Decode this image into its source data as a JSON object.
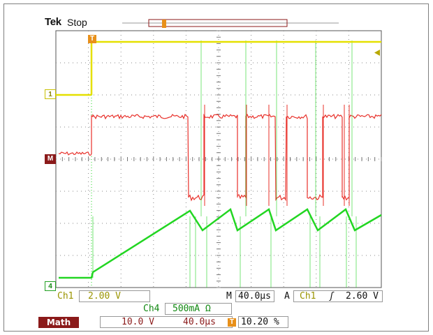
{
  "header": {
    "brand": "Tek",
    "acq_state": "Stop"
  },
  "markers": {
    "trigger_pos": "T",
    "ch1": "1",
    "math": "M",
    "ch4": "4"
  },
  "readout": {
    "ch1_label": "Ch1",
    "ch1_scale": "2.00 V",
    "horiz_label": "M",
    "horiz_scale": "40.0µs",
    "trig_label": "A",
    "trig_source": "Ch1",
    "trig_slope": "ʃ",
    "trig_level": "2.60 V",
    "ch4_label": "Ch4",
    "ch4_scale": "500mA Ω",
    "math_label": "Math",
    "math_scale": "10.0 V",
    "math_time": "40.0µs",
    "trig_pos_icon": "T",
    "trig_pos_value": "10.20 %"
  },
  "colors": {
    "ch1": "#e5e000",
    "math": "#e8302a",
    "ch4": "#22d622",
    "trigger": "#e8901a",
    "math_tag": "#8b1a1a"
  },
  "icons": {
    "trigger_level_arrow": "trigger-level-arrow-icon",
    "record_view": "record-bar-icon"
  }
}
